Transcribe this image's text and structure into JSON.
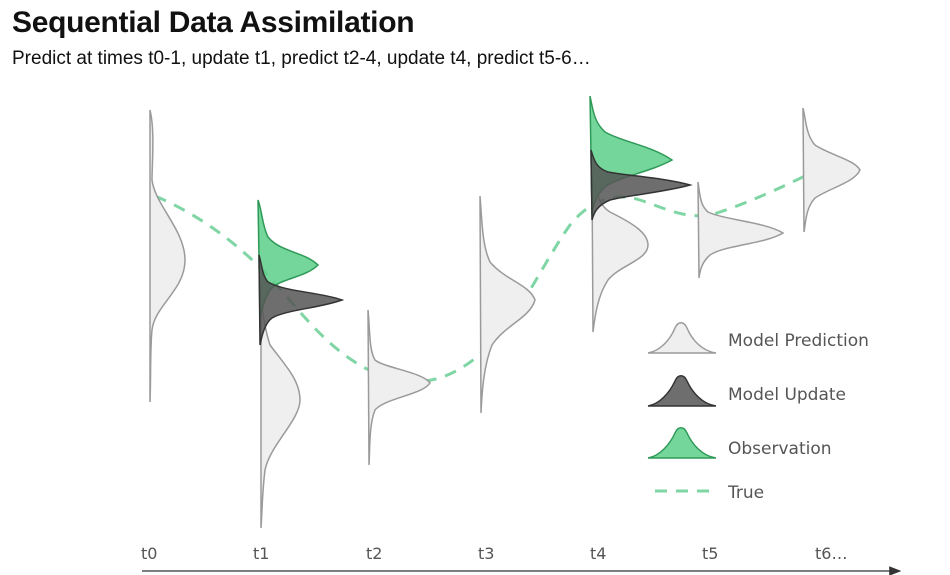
{
  "title": "Sequential Data Assimilation",
  "subtitle": "Predict at times t0-1, update t1, predict t2-4, update t4, predict t5-6…",
  "time_labels": [
    "t0",
    "t1",
    "t2",
    "t3",
    "t4",
    "t5",
    "t6…"
  ],
  "legend": [
    {
      "key": "prediction",
      "label": "Model Prediction"
    },
    {
      "key": "update",
      "label": "Model Update"
    },
    {
      "key": "observation",
      "label": "Observation"
    },
    {
      "key": "true",
      "label": "True"
    }
  ],
  "colors": {
    "prediction_fill": "#efefef",
    "prediction_stroke": "#9a9a9a",
    "update_fill": "#555555",
    "update_stroke": "#333333",
    "observation_fill": "#5ccf8a",
    "observation_stroke": "#2f9a58",
    "true_line": "#7fd6a4",
    "axis": "#333333"
  }
}
